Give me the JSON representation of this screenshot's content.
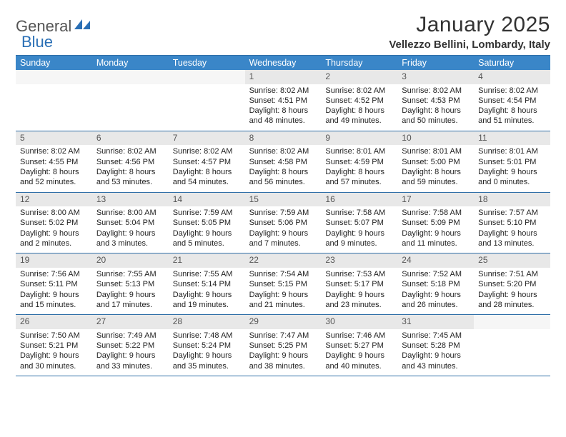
{
  "brand": {
    "general": "General",
    "blue": "Blue"
  },
  "colors": {
    "accent": "#3a86c8",
    "rule": "#2f6fa8",
    "daynum_bg": "#e8e8e8",
    "text": "#222222"
  },
  "title": "January 2025",
  "location": "Vellezzo Bellini, Lombardy, Italy",
  "dow": [
    "Sunday",
    "Monday",
    "Tuesday",
    "Wednesday",
    "Thursday",
    "Friday",
    "Saturday"
  ],
  "weeks": [
    [
      null,
      null,
      null,
      {
        "n": "1",
        "sunrise": "8:02 AM",
        "sunset": "4:51 PM",
        "day_h": "8",
        "day_m": "48"
      },
      {
        "n": "2",
        "sunrise": "8:02 AM",
        "sunset": "4:52 PM",
        "day_h": "8",
        "day_m": "49"
      },
      {
        "n": "3",
        "sunrise": "8:02 AM",
        "sunset": "4:53 PM",
        "day_h": "8",
        "day_m": "50"
      },
      {
        "n": "4",
        "sunrise": "8:02 AM",
        "sunset": "4:54 PM",
        "day_h": "8",
        "day_m": "51"
      }
    ],
    [
      {
        "n": "5",
        "sunrise": "8:02 AM",
        "sunset": "4:55 PM",
        "day_h": "8",
        "day_m": "52"
      },
      {
        "n": "6",
        "sunrise": "8:02 AM",
        "sunset": "4:56 PM",
        "day_h": "8",
        "day_m": "53"
      },
      {
        "n": "7",
        "sunrise": "8:02 AM",
        "sunset": "4:57 PM",
        "day_h": "8",
        "day_m": "54"
      },
      {
        "n": "8",
        "sunrise": "8:02 AM",
        "sunset": "4:58 PM",
        "day_h": "8",
        "day_m": "56"
      },
      {
        "n": "9",
        "sunrise": "8:01 AM",
        "sunset": "4:59 PM",
        "day_h": "8",
        "day_m": "57"
      },
      {
        "n": "10",
        "sunrise": "8:01 AM",
        "sunset": "5:00 PM",
        "day_h": "8",
        "day_m": "59"
      },
      {
        "n": "11",
        "sunrise": "8:01 AM",
        "sunset": "5:01 PM",
        "day_h": "9",
        "day_m": "0"
      }
    ],
    [
      {
        "n": "12",
        "sunrise": "8:00 AM",
        "sunset": "5:02 PM",
        "day_h": "9",
        "day_m": "2"
      },
      {
        "n": "13",
        "sunrise": "8:00 AM",
        "sunset": "5:04 PM",
        "day_h": "9",
        "day_m": "3"
      },
      {
        "n": "14",
        "sunrise": "7:59 AM",
        "sunset": "5:05 PM",
        "day_h": "9",
        "day_m": "5"
      },
      {
        "n": "15",
        "sunrise": "7:59 AM",
        "sunset": "5:06 PM",
        "day_h": "9",
        "day_m": "7"
      },
      {
        "n": "16",
        "sunrise": "7:58 AM",
        "sunset": "5:07 PM",
        "day_h": "9",
        "day_m": "9"
      },
      {
        "n": "17",
        "sunrise": "7:58 AM",
        "sunset": "5:09 PM",
        "day_h": "9",
        "day_m": "11"
      },
      {
        "n": "18",
        "sunrise": "7:57 AM",
        "sunset": "5:10 PM",
        "day_h": "9",
        "day_m": "13"
      }
    ],
    [
      {
        "n": "19",
        "sunrise": "7:56 AM",
        "sunset": "5:11 PM",
        "day_h": "9",
        "day_m": "15"
      },
      {
        "n": "20",
        "sunrise": "7:55 AM",
        "sunset": "5:13 PM",
        "day_h": "9",
        "day_m": "17"
      },
      {
        "n": "21",
        "sunrise": "7:55 AM",
        "sunset": "5:14 PM",
        "day_h": "9",
        "day_m": "19"
      },
      {
        "n": "22",
        "sunrise": "7:54 AM",
        "sunset": "5:15 PM",
        "day_h": "9",
        "day_m": "21"
      },
      {
        "n": "23",
        "sunrise": "7:53 AM",
        "sunset": "5:17 PM",
        "day_h": "9",
        "day_m": "23"
      },
      {
        "n": "24",
        "sunrise": "7:52 AM",
        "sunset": "5:18 PM",
        "day_h": "9",
        "day_m": "26"
      },
      {
        "n": "25",
        "sunrise": "7:51 AM",
        "sunset": "5:20 PM",
        "day_h": "9",
        "day_m": "28"
      }
    ],
    [
      {
        "n": "26",
        "sunrise": "7:50 AM",
        "sunset": "5:21 PM",
        "day_h": "9",
        "day_m": "30"
      },
      {
        "n": "27",
        "sunrise": "7:49 AM",
        "sunset": "5:22 PM",
        "day_h": "9",
        "day_m": "33"
      },
      {
        "n": "28",
        "sunrise": "7:48 AM",
        "sunset": "5:24 PM",
        "day_h": "9",
        "day_m": "35"
      },
      {
        "n": "29",
        "sunrise": "7:47 AM",
        "sunset": "5:25 PM",
        "day_h": "9",
        "day_m": "38"
      },
      {
        "n": "30",
        "sunrise": "7:46 AM",
        "sunset": "5:27 PM",
        "day_h": "9",
        "day_m": "40"
      },
      {
        "n": "31",
        "sunrise": "7:45 AM",
        "sunset": "5:28 PM",
        "day_h": "9",
        "day_m": "43"
      },
      null
    ]
  ],
  "labels": {
    "sunrise": "Sunrise:",
    "sunset": "Sunset:",
    "daylight": "Daylight:",
    "hours": "hours",
    "and": "and",
    "minutes": "minutes."
  }
}
